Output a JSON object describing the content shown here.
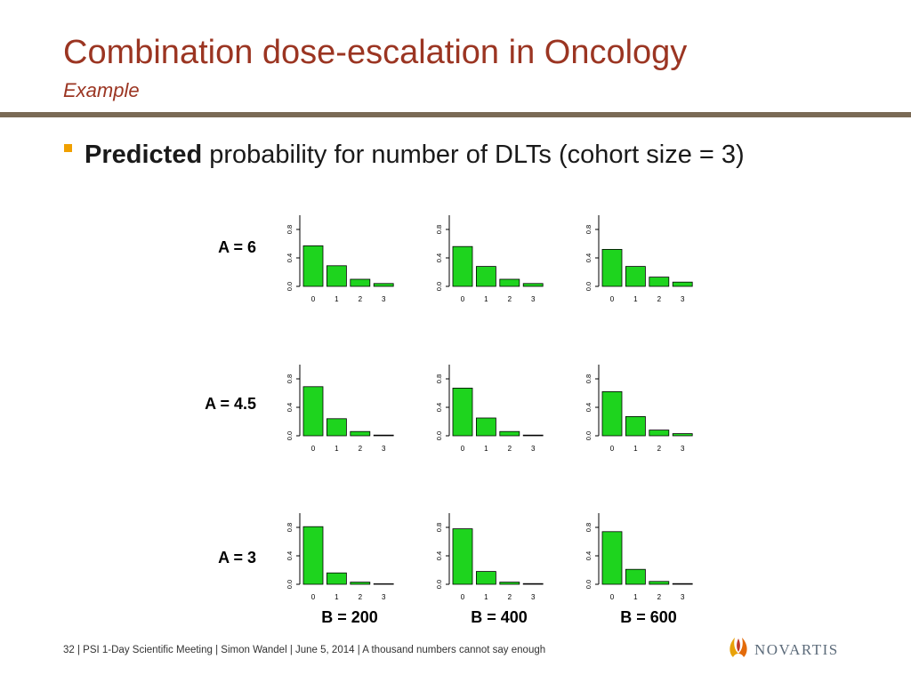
{
  "header": {
    "title": "Combination dose-escalation in Oncology",
    "subtitle": "Example"
  },
  "bullet": {
    "bold": "Predicted",
    "rest": " probability for number of DLTs (cohort size = 3)"
  },
  "row_labels": [
    "A = 6",
    "A = 4.5",
    "A = 3"
  ],
  "col_labels": [
    "B = 200",
    "B = 400",
    "B = 600"
  ],
  "footer": {
    "page": "32",
    "text": " | PSI 1-Day Scientific Meeting | Simon Wandel | June 5, 2014 | A thousand numbers cannot say enough"
  },
  "logo": {
    "text": "NOVARTIS",
    "icon": "novartis-flame-icon"
  },
  "colors": {
    "bar_fill": "#1ed41e",
    "title": "#9b3522",
    "bullet": "#f0a000",
    "rule": "#7a6a55"
  },
  "chart_data": [
    {
      "type": "bar",
      "row": "A = 6",
      "col": "B = 200",
      "categories": [
        "0",
        "1",
        "2",
        "3"
      ],
      "values": [
        0.57,
        0.29,
        0.1,
        0.04
      ],
      "ylim": [
        0,
        1
      ],
      "yticks": [
        "0.0",
        "0.4",
        "0.8"
      ]
    },
    {
      "type": "bar",
      "row": "A = 6",
      "col": "B = 400",
      "categories": [
        "0",
        "1",
        "2",
        "3"
      ],
      "values": [
        0.56,
        0.28,
        0.1,
        0.04
      ],
      "ylim": [
        0,
        1
      ],
      "yticks": [
        "0.0",
        "0.4",
        "0.8"
      ]
    },
    {
      "type": "bar",
      "row": "A = 6",
      "col": "B = 600",
      "categories": [
        "0",
        "1",
        "2",
        "3"
      ],
      "values": [
        0.52,
        0.28,
        0.13,
        0.06
      ],
      "ylim": [
        0,
        1
      ],
      "yticks": [
        "0.0",
        "0.4",
        "0.8"
      ]
    },
    {
      "type": "bar",
      "row": "A = 4.5",
      "col": "B = 200",
      "categories": [
        "0",
        "1",
        "2",
        "3"
      ],
      "values": [
        0.69,
        0.24,
        0.06,
        0.01
      ],
      "ylim": [
        0,
        1
      ],
      "yticks": [
        "0.0",
        "0.4",
        "0.8"
      ]
    },
    {
      "type": "bar",
      "row": "A = 4.5",
      "col": "B = 400",
      "categories": [
        "0",
        "1",
        "2",
        "3"
      ],
      "values": [
        0.67,
        0.25,
        0.06,
        0.01
      ],
      "ylim": [
        0,
        1
      ],
      "yticks": [
        "0.0",
        "0.4",
        "0.8"
      ]
    },
    {
      "type": "bar",
      "row": "A = 4.5",
      "col": "B = 600",
      "categories": [
        "0",
        "1",
        "2",
        "3"
      ],
      "values": [
        0.62,
        0.27,
        0.08,
        0.03
      ],
      "ylim": [
        0,
        1
      ],
      "yticks": [
        "0.0",
        "0.4",
        "0.8"
      ]
    },
    {
      "type": "bar",
      "row": "A = 3",
      "col": "B = 200",
      "categories": [
        "0",
        "1",
        "2",
        "3"
      ],
      "values": [
        0.81,
        0.16,
        0.03,
        0.005
      ],
      "ylim": [
        0,
        1
      ],
      "yticks": [
        "0.0",
        "0.4",
        "0.8"
      ]
    },
    {
      "type": "bar",
      "row": "A = 3",
      "col": "B = 400",
      "categories": [
        "0",
        "1",
        "2",
        "3"
      ],
      "values": [
        0.78,
        0.18,
        0.03,
        0.01
      ],
      "ylim": [
        0,
        1
      ],
      "yticks": [
        "0.0",
        "0.4",
        "0.8"
      ]
    },
    {
      "type": "bar",
      "row": "A = 3",
      "col": "B = 600",
      "categories": [
        "0",
        "1",
        "2",
        "3"
      ],
      "values": [
        0.74,
        0.21,
        0.04,
        0.01
      ],
      "ylim": [
        0,
        1
      ],
      "yticks": [
        "0.0",
        "0.4",
        "0.8"
      ]
    }
  ]
}
